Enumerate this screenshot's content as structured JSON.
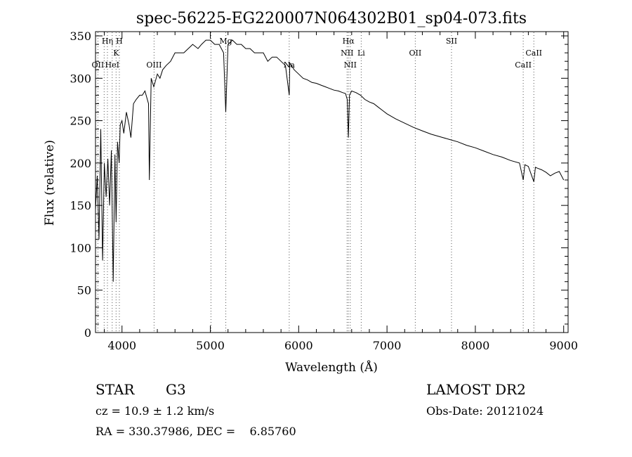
{
  "chart_data": {
    "type": "line",
    "title": "spec-56225-EG220007N064302B01_sp04-073.fits",
    "xlabel": "Wavelength (Å)",
    "ylabel": "Flux (relative)",
    "xlim": [
      3700,
      9050
    ],
    "ylim": [
      0,
      355
    ],
    "xticks": [
      4000,
      5000,
      6000,
      7000,
      8000,
      9000
    ],
    "yticks": [
      0,
      50,
      100,
      150,
      200,
      250,
      300,
      350
    ],
    "series": [
      {
        "x": [
          3700,
          3720,
          3740,
          3760,
          3780,
          3800,
          3820,
          3840,
          3860,
          3880,
          3900,
          3920,
          3933,
          3950,
          3968,
          3980,
          4000,
          4020,
          4050,
          4080,
          4101,
          4130,
          4160,
          4200,
          4230,
          4260,
          4300,
          4310,
          4330,
          4360,
          4400,
          4430,
          4460,
          4500,
          4550,
          4600,
          4650,
          4700,
          4750,
          4800,
          4861,
          4900,
          4950,
          5000,
          5050,
          5100,
          5150,
          5175,
          5200,
          5250,
          5300,
          5350,
          5400,
          5450,
          5500,
          5550,
          5600,
          5650,
          5700,
          5750,
          5800,
          5850,
          5893,
          5900,
          5950,
          6000,
          6050,
          6100,
          6150,
          6200,
          6250,
          6300,
          6350,
          6400,
          6450,
          6500,
          6530,
          6550,
          6563,
          6575,
          6600,
          6650,
          6700,
          6750,
          6800,
          6850,
          6900,
          6950,
          7000,
          7100,
          7200,
          7300,
          7400,
          7500,
          7600,
          7700,
          7800,
          7900,
          8000,
          8100,
          8200,
          8300,
          8400,
          8500,
          8542,
          8560,
          8600,
          8662,
          8680,
          8700,
          8750,
          8800,
          8850,
          8900,
          8950,
          9000
        ],
        "y": [
          145,
          185,
          110,
          240,
          85,
          200,
          160,
          205,
          150,
          215,
          60,
          210,
          130,
          225,
          200,
          245,
          250,
          235,
          260,
          245,
          230,
          270,
          275,
          280,
          280,
          285,
          270,
          180,
          300,
          290,
          305,
          300,
          310,
          315,
          320,
          330,
          330,
          330,
          335,
          340,
          335,
          340,
          345,
          345,
          340,
          340,
          330,
          260,
          340,
          345,
          340,
          340,
          335,
          335,
          330,
          330,
          330,
          320,
          325,
          325,
          320,
          315,
          280,
          318,
          310,
          305,
          300,
          298,
          295,
          294,
          292,
          290,
          288,
          286,
          285,
          283,
          282,
          275,
          230,
          280,
          285,
          283,
          280,
          275,
          272,
          270,
          266,
          262,
          258,
          252,
          247,
          242,
          238,
          234,
          231,
          228,
          225,
          221,
          218,
          214,
          210,
          207,
          203,
          200,
          180,
          198,
          196,
          178,
          195,
          194,
          192,
          189,
          185,
          188,
          190,
          180
        ]
      }
    ],
    "lines": [
      {
        "w": 3727,
        "label": "OII",
        "row": 3
      },
      {
        "w": 3798,
        "label": "",
        "row": 0
      },
      {
        "w": 3835,
        "label": "Hη",
        "row": 1
      },
      {
        "w": 3889,
        "label": "HeI",
        "row": 3
      },
      {
        "w": 3933,
        "label": "K",
        "row": 2
      },
      {
        "w": 3970,
        "label": "H",
        "row": 1
      },
      {
        "w": 4363,
        "label": "OIII",
        "row": 3
      },
      {
        "w": 5007,
        "label": "",
        "row": 0
      },
      {
        "w": 5175,
        "label": "Mg",
        "row": 1
      },
      {
        "w": 5893,
        "label": "Na",
        "row": 3
      },
      {
        "w": 6548,
        "label": "NII",
        "row": 2
      },
      {
        "w": 6563,
        "label": "Hα",
        "row": 1
      },
      {
        "w": 6584,
        "label": "NII",
        "row": 3
      },
      {
        "w": 6708,
        "label": "Li",
        "row": 2
      },
      {
        "w": 7320,
        "label": "OII",
        "row": 2
      },
      {
        "w": 7730,
        "label": "SII",
        "row": 1
      },
      {
        "w": 8542,
        "label": "CaII",
        "row": 3
      },
      {
        "w": 8662,
        "label": "CaII",
        "row": 2
      }
    ]
  },
  "footer": {
    "object_class": "STAR",
    "subclass": "G3",
    "survey": "LAMOST DR2",
    "redshift": "cz = 10.9 ± 1.2 km/s",
    "obs_date": "Obs-Date: 20121024",
    "coords": "RA = 330.37986, DEC =    6.85760"
  }
}
